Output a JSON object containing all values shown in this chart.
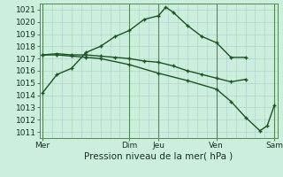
{
  "xlabel": "Pression niveau de la mer( hPa )",
  "ylim": [
    1010.5,
    1021.5
  ],
  "xlim": [
    -0.1,
    8.1
  ],
  "yticks": [
    1011,
    1012,
    1013,
    1014,
    1015,
    1016,
    1017,
    1018,
    1019,
    1020,
    1021
  ],
  "bg_color": "#cceedd",
  "fine_grid_color": "#aacccc",
  "day_line_color": "#558855",
  "line_color": "#1a5520",
  "xtick_labels": [
    "Mer",
    "Dim",
    "Jeu",
    "Ven",
    "Sam"
  ],
  "xtick_positions": [
    0,
    3,
    4,
    6,
    8
  ],
  "day_vlines": [
    0,
    3,
    4,
    6,
    8
  ],
  "fine_vlines_count": 24,
  "line1_x": [
    0,
    0.5,
    1.0,
    1.5,
    2.0,
    2.5,
    3.0,
    3.5,
    4.0,
    4.25,
    4.5,
    5.0,
    5.5,
    6.0,
    6.5,
    7.0
  ],
  "line1_y": [
    1014.2,
    1015.7,
    1016.2,
    1017.5,
    1018.0,
    1018.8,
    1019.3,
    1020.2,
    1020.5,
    1021.2,
    1020.8,
    1019.7,
    1018.8,
    1018.3,
    1017.1,
    1017.1
  ],
  "line2_x": [
    0,
    0.5,
    1.0,
    1.5,
    2.0,
    2.5,
    3.0,
    3.5,
    4.0,
    4.5,
    5.0,
    5.5,
    6.0,
    6.5,
    7.0
  ],
  "line2_y": [
    1017.3,
    1017.4,
    1017.3,
    1017.3,
    1017.2,
    1017.1,
    1017.0,
    1016.8,
    1016.7,
    1016.4,
    1016.0,
    1015.7,
    1015.4,
    1015.1,
    1015.3
  ],
  "line3_x": [
    0,
    0.5,
    1.0,
    1.5,
    2.0,
    3.0,
    4.0,
    5.0,
    6.0,
    6.5,
    7.0,
    7.5,
    7.75,
    8.0
  ],
  "line3_y": [
    1017.3,
    1017.3,
    1017.2,
    1017.1,
    1017.0,
    1016.5,
    1015.8,
    1015.2,
    1014.5,
    1013.5,
    1012.2,
    1011.1,
    1011.5,
    1013.2
  ],
  "marker_size": 3.5,
  "line_width": 1.0,
  "font_size_ticks": 6.5,
  "font_size_xlabel": 7.5
}
